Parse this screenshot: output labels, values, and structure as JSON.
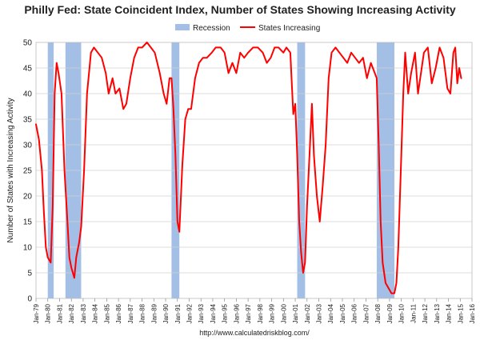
{
  "chart_data": {
    "type": "line",
    "title": "Philly Fed: State Coincident Index, Number of States Showing Increasing Activity",
    "xlabel": "",
    "ylabel": "Number of States with Increasing Activity",
    "ylim": [
      0,
      50
    ],
    "xlim": [
      "1979-01",
      "2016-01"
    ],
    "yticks": [
      0,
      5,
      10,
      15,
      20,
      25,
      30,
      35,
      40,
      45,
      50
    ],
    "xticks": [
      "Jan-79",
      "Jan-80",
      "Jan-81",
      "Jan-82",
      "Jan-83",
      "Jan-84",
      "Jan-85",
      "Jan-86",
      "Jan-87",
      "Jan-88",
      "Jan-89",
      "Jan-90",
      "Jan-91",
      "Jan-92",
      "Jan-93",
      "Jan-94",
      "Jan-95",
      "Jan-96",
      "Jan-97",
      "Jan-98",
      "Jan-99",
      "Jan-00",
      "Jan-01",
      "Jan-02",
      "Jan-03",
      "Jan-04",
      "Jan-05",
      "Jan-06",
      "Jan-07",
      "Jan-08",
      "Jan-09",
      "Jan-10",
      "Jan-11",
      "Jan-12",
      "Jan-13",
      "Jan-14",
      "Jan-15",
      "Jan-16"
    ],
    "grid": true,
    "legend": {
      "placement": "top-center",
      "recession_label": "Recession",
      "series_label": "States Increasing"
    },
    "colors": {
      "recession": "#a3bfe6",
      "series": "#ff0000",
      "grid": "#d0d0d0"
    },
    "recessions": [
      {
        "start": "1980-01",
        "end": "1980-07"
      },
      {
        "start": "1981-07",
        "end": "1982-11"
      },
      {
        "start": "1990-07",
        "end": "1991-03"
      },
      {
        "start": "2001-03",
        "end": "2001-11"
      },
      {
        "start": "2007-12",
        "end": "2009-06"
      }
    ],
    "series": [
      {
        "name": "States Increasing",
        "points": [
          [
            "1979-01",
            34
          ],
          [
            "1979-04",
            31
          ],
          [
            "1979-07",
            25
          ],
          [
            "1979-09",
            17
          ],
          [
            "1979-11",
            10
          ],
          [
            "1980-01",
            8
          ],
          [
            "1980-04",
            7
          ],
          [
            "1980-06",
            18
          ],
          [
            "1980-08",
            40
          ],
          [
            "1980-10",
            46
          ],
          [
            "1980-12",
            44
          ],
          [
            "1981-03",
            40
          ],
          [
            "1981-06",
            25
          ],
          [
            "1981-09",
            15
          ],
          [
            "1981-11",
            8
          ],
          [
            "1982-01",
            6
          ],
          [
            "1982-04",
            4
          ],
          [
            "1982-06",
            8
          ],
          [
            "1982-09",
            11
          ],
          [
            "1982-11",
            14
          ],
          [
            "1983-02",
            25
          ],
          [
            "1983-05",
            40
          ],
          [
            "1983-09",
            48
          ],
          [
            "1983-12",
            49
          ],
          [
            "1984-04",
            48
          ],
          [
            "1984-08",
            47
          ],
          [
            "1984-12",
            44
          ],
          [
            "1985-03",
            40
          ],
          [
            "1985-07",
            43
          ],
          [
            "1985-10",
            40
          ],
          [
            "1986-02",
            41
          ],
          [
            "1986-06",
            37
          ],
          [
            "1986-09",
            38
          ],
          [
            "1987-01",
            43
          ],
          [
            "1987-05",
            47
          ],
          [
            "1987-09",
            49
          ],
          [
            "1988-01",
            49
          ],
          [
            "1988-06",
            50
          ],
          [
            "1988-10",
            49
          ],
          [
            "1989-02",
            48
          ],
          [
            "1989-07",
            44
          ],
          [
            "1989-11",
            40
          ],
          [
            "1990-02",
            38
          ],
          [
            "1990-05",
            43
          ],
          [
            "1990-07",
            43
          ],
          [
            "1990-09",
            37
          ],
          [
            "1990-11",
            28
          ],
          [
            "1991-01",
            15
          ],
          [
            "1991-03",
            13
          ],
          [
            "1991-06",
            26
          ],
          [
            "1991-09",
            35
          ],
          [
            "1991-12",
            37
          ],
          [
            "1992-03",
            37
          ],
          [
            "1992-07",
            43
          ],
          [
            "1992-11",
            46
          ],
          [
            "1993-03",
            47
          ],
          [
            "1993-07",
            47
          ],
          [
            "1993-12",
            48
          ],
          [
            "1994-04",
            49
          ],
          [
            "1994-09",
            49
          ],
          [
            "1995-01",
            48
          ],
          [
            "1995-05",
            44
          ],
          [
            "1995-09",
            46
          ],
          [
            "1996-01",
            44
          ],
          [
            "1996-05",
            48
          ],
          [
            "1996-09",
            47
          ],
          [
            "1997-01",
            48
          ],
          [
            "1997-06",
            49
          ],
          [
            "1997-11",
            49
          ],
          [
            "1998-04",
            48
          ],
          [
            "1998-08",
            46
          ],
          [
            "1998-12",
            47
          ],
          [
            "1999-04",
            49
          ],
          [
            "1999-08",
            49
          ],
          [
            "2000-01",
            48
          ],
          [
            "2000-04",
            49
          ],
          [
            "2000-08",
            48
          ],
          [
            "2000-11",
            36
          ],
          [
            "2001-01",
            38
          ],
          [
            "2001-03",
            28
          ],
          [
            "2001-05",
            15
          ],
          [
            "2001-07",
            9
          ],
          [
            "2001-09",
            5
          ],
          [
            "2001-11",
            7
          ],
          [
            "2002-01",
            18
          ],
          [
            "2002-04",
            30
          ],
          [
            "2002-06",
            38
          ],
          [
            "2002-08",
            28
          ],
          [
            "2002-11",
            20
          ],
          [
            "2003-02",
            15
          ],
          [
            "2003-05",
            22
          ],
          [
            "2003-08",
            30
          ],
          [
            "2003-11",
            43
          ],
          [
            "2004-02",
            48
          ],
          [
            "2004-06",
            49
          ],
          [
            "2004-10",
            48
          ],
          [
            "2005-02",
            47
          ],
          [
            "2005-06",
            46
          ],
          [
            "2005-10",
            48
          ],
          [
            "2006-02",
            47
          ],
          [
            "2006-06",
            46
          ],
          [
            "2006-10",
            47
          ],
          [
            "2007-02",
            43
          ],
          [
            "2007-06",
            46
          ],
          [
            "2007-10",
            44
          ],
          [
            "2007-12",
            43
          ],
          [
            "2008-02",
            30
          ],
          [
            "2008-04",
            15
          ],
          [
            "2008-06",
            7
          ],
          [
            "2008-09",
            3
          ],
          [
            "2008-12",
            2
          ],
          [
            "2009-03",
            1
          ],
          [
            "2009-06",
            1
          ],
          [
            "2009-08",
            3
          ],
          [
            "2009-10",
            10
          ],
          [
            "2009-12",
            22
          ],
          [
            "2010-03",
            40
          ],
          [
            "2010-05",
            48
          ],
          [
            "2010-08",
            40
          ],
          [
            "2010-11",
            44
          ],
          [
            "2011-03",
            48
          ],
          [
            "2011-06",
            40
          ],
          [
            "2011-09",
            44
          ],
          [
            "2011-12",
            48
          ],
          [
            "2012-04",
            49
          ],
          [
            "2012-08",
            42
          ],
          [
            "2012-12",
            45
          ],
          [
            "2013-04",
            49
          ],
          [
            "2013-08",
            47
          ],
          [
            "2013-12",
            41
          ],
          [
            "2014-03",
            40
          ],
          [
            "2014-06",
            48
          ],
          [
            "2014-08",
            49
          ],
          [
            "2014-10",
            42
          ],
          [
            "2014-12",
            45
          ],
          [
            "2015-02",
            43
          ]
        ]
      }
    ],
    "source_text": "http://www.calculatedriskblog.com/"
  }
}
